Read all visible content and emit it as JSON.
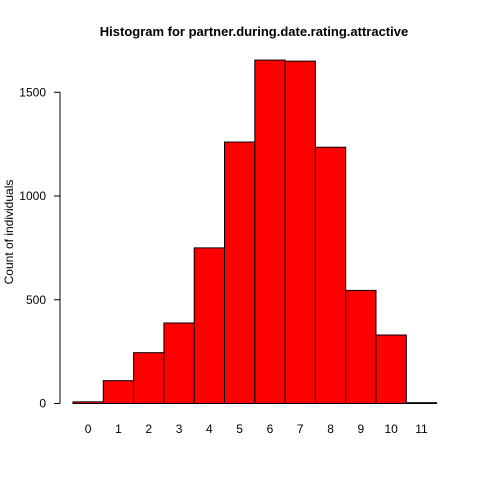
{
  "chart_data": {
    "type": "bar",
    "title": "Histogram for partner.during.date.rating.attractive",
    "xlabel": "",
    "ylabel": "Count of individuals",
    "categories": [
      "0",
      "1",
      "2",
      "3",
      "4",
      "5",
      "6",
      "7",
      "8",
      "9",
      "10",
      "11"
    ],
    "values": [
      8,
      110,
      245,
      388,
      750,
      1260,
      1655,
      1650,
      1235,
      545,
      330,
      4
    ],
    "ylim": [
      0,
      1750
    ],
    "yticks": [
      0,
      500,
      1000,
      1500
    ],
    "grid": false,
    "bar_color": "#ff0000",
    "bar_edge_color": "#000000"
  }
}
